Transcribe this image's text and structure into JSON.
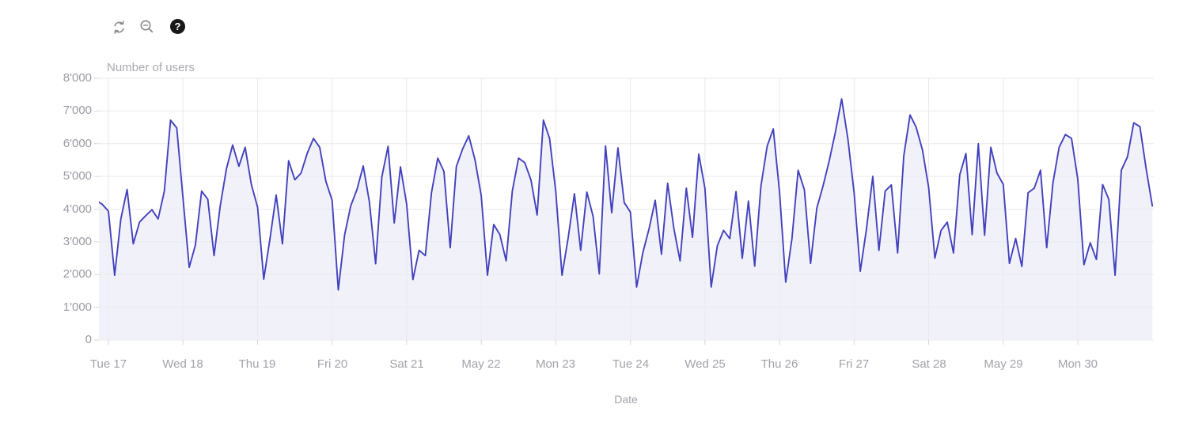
{
  "toolbar": {
    "help_glyph": "?",
    "buttons": [
      {
        "name": "refresh",
        "icon": "refresh-icon"
      },
      {
        "name": "zoom-out",
        "icon": "zoom-out-icon"
      },
      {
        "name": "help",
        "icon": "help-icon"
      }
    ]
  },
  "chart_data": {
    "type": "line",
    "title": "",
    "ylabel": "Number of users",
    "xlabel": "Date",
    "ylim": [
      0,
      8000
    ],
    "grid": true,
    "legend": false,
    "line_color": "#4341bd",
    "fill_color": "#f1f2f9",
    "y_ticks": [
      0,
      1000,
      2000,
      3000,
      4000,
      5000,
      6000,
      7000,
      8000
    ],
    "y_tick_labels": [
      "0",
      "1'000",
      "2'000",
      "3'000",
      "4'000",
      "5'000",
      "6'000",
      "7'000",
      "8'000"
    ],
    "x_tick_labels": [
      "Tue 17",
      "Wed 18",
      "Thu 19",
      "Fri 20",
      "Sat 21",
      "May 22",
      "Mon 23",
      "Tue 24",
      "Wed 25",
      "Thu 26",
      "Fri 27",
      "Sat 28",
      "May 29",
      "Mon 30"
    ],
    "series": [
      {
        "name": "Number of users",
        "t_unit": "days relative to first x tick (Tue 17), sampled every 2 hours",
        "t_start": -0.166667,
        "t_step": 0.083333,
        "values": [
          4270,
          4150,
          3940,
          1980,
          3700,
          4600,
          2940,
          3600,
          3800,
          3980,
          3700,
          4550,
          6720,
          6480,
          4350,
          2220,
          2900,
          4550,
          4300,
          2580,
          4100,
          5240,
          5960,
          5310,
          5890,
          4760,
          4060,
          1860,
          3100,
          4430,
          2940,
          5480,
          4900,
          5100,
          5710,
          6160,
          5890,
          4850,
          4270,
          1530,
          3200,
          4100,
          4600,
          5320,
          4220,
          2330,
          4980,
          5920,
          3580,
          5290,
          4150,
          1850,
          2740,
          2580,
          4510,
          5560,
          5150,
          2820,
          5300,
          5840,
          6240,
          5500,
          4420,
          1980,
          3530,
          3220,
          2420,
          4550,
          5560,
          5420,
          4890,
          3820,
          6720,
          6160,
          4520,
          1980,
          3140,
          4470,
          2740,
          4520,
          3780,
          2020,
          5930,
          3890,
          5870,
          4200,
          3910,
          1620,
          2660,
          3400,
          4270,
          2620,
          4790,
          3400,
          2420,
          4640,
          3140,
          5680,
          4640,
          1620,
          2880,
          3350,
          3100,
          4540,
          2500,
          4250,
          2260,
          4690,
          5920,
          6450,
          4520,
          1770,
          3100,
          5190,
          4590,
          2340,
          4030,
          4700,
          5480,
          6360,
          7370,
          6160,
          4510,
          2100,
          3400,
          5000,
          2740,
          4550,
          4740,
          2660,
          5630,
          6880,
          6500,
          5810,
          4670,
          2500,
          3350,
          3600,
          2660,
          5050,
          5700,
          3220,
          6000,
          3200,
          5890,
          5100,
          4760,
          2340,
          3100,
          2250,
          4500,
          4640,
          5190,
          2820,
          4800,
          5890,
          6280,
          6160,
          4910,
          2300,
          2970,
          2460,
          4750,
          4300,
          1980,
          5190,
          5600,
          6640,
          6520,
          5230,
          4100
        ]
      }
    ]
  }
}
